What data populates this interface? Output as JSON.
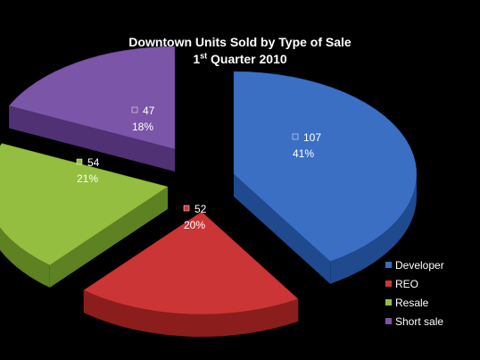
{
  "chart_data": {
    "type": "pie",
    "title_line1": "Downtown Units Sold by Type of Sale",
    "title_line2_pre": "1",
    "title_line2_sup": "st",
    "title_line2_post": " Quarter 2010",
    "slices": [
      {
        "name": "Developer",
        "value": 107,
        "percent": "41%",
        "value_label": "107",
        "color": "#3a6fc4",
        "dark": "#1f4a8e"
      },
      {
        "name": "REO",
        "value": 52,
        "percent": "20%",
        "value_label": "52",
        "color": "#cc3535",
        "dark": "#8c1d1d"
      },
      {
        "name": "Resale",
        "value": 54,
        "percent": "21%",
        "value_label": "54",
        "color": "#93be3f",
        "dark": "#5e8222"
      },
      {
        "name": "Short sale",
        "value": 47,
        "percent": "18%",
        "value_label": "47",
        "color": "#7b55a8",
        "dark": "#4f3174"
      }
    ],
    "legend_position": "bottom-right",
    "exploded": true,
    "style": "3d"
  }
}
